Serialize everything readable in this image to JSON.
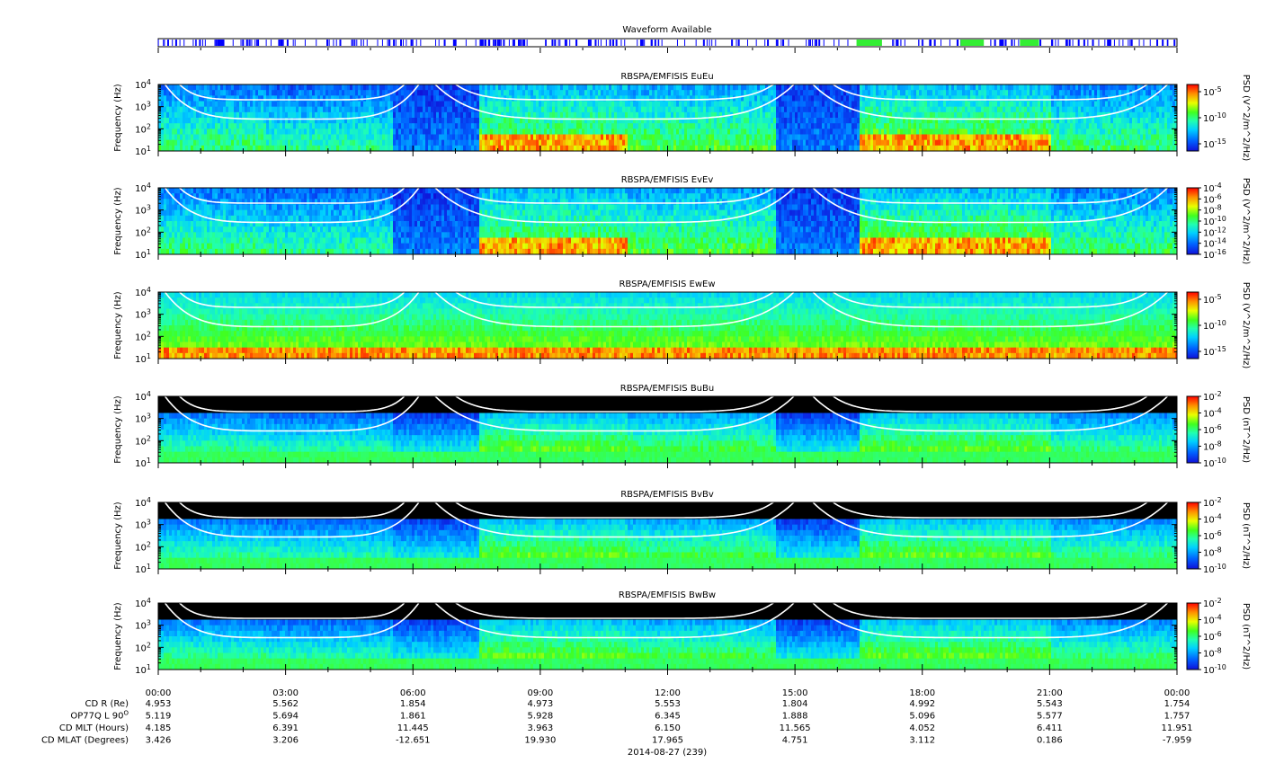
{
  "waveform": {
    "title": "Waveform Available",
    "spans": [
      {
        "t0": 0.0,
        "t1": 17.3,
        "color": "#0000ff"
      },
      {
        "t0": 17.3,
        "t1": 24.0,
        "color": "#0000ff"
      },
      {
        "t0": 16.45,
        "t1": 17.05,
        "color": "#33ee33"
      },
      {
        "t0": 18.9,
        "t1": 19.45,
        "color": "#33ee33"
      },
      {
        "t0": 20.3,
        "t1": 20.75,
        "color": "#33ee33"
      }
    ]
  },
  "chart_data": [
    {
      "type": "heatmap",
      "title": "RBSPA/EMFISIS  EuEu",
      "ylabel": "Frequency (Hz)",
      "ylim": [
        10,
        10000
      ],
      "yscale": "log",
      "yticks": [
        {
          "base": "10",
          "exp": "4"
        },
        {
          "base": "10",
          "exp": "3"
        },
        {
          "base": "10",
          "exp": "2"
        },
        {
          "base": "10",
          "exp": "1"
        }
      ],
      "colorbar": {
        "label": "PSD (V^2/m^2/Hz)",
        "ticks": [
          {
            "base": "10",
            "exp": "-5"
          },
          {
            "base": "10",
            "exp": "-10"
          },
          {
            "base": "10",
            "exp": "-15"
          }
        ]
      }
    },
    {
      "type": "heatmap",
      "title": "RBSPA/EMFISIS  EvEv",
      "ylabel": "Frequency (Hz)",
      "ylim": [
        10,
        10000
      ],
      "yscale": "log",
      "yticks": [
        {
          "base": "10",
          "exp": "4"
        },
        {
          "base": "10",
          "exp": "3"
        },
        {
          "base": "10",
          "exp": "2"
        },
        {
          "base": "10",
          "exp": "1"
        }
      ],
      "colorbar": {
        "label": "PSD (V^2/m^2/Hz)",
        "ticks": [
          {
            "base": "10",
            "exp": "-4"
          },
          {
            "base": "10",
            "exp": "-6"
          },
          {
            "base": "10",
            "exp": "-8"
          },
          {
            "base": "10",
            "exp": "-10"
          },
          {
            "base": "10",
            "exp": "-12"
          },
          {
            "base": "10",
            "exp": "-14"
          },
          {
            "base": "10",
            "exp": "-16"
          }
        ]
      }
    },
    {
      "type": "heatmap",
      "title": "RBSPA/EMFISIS  EwEw",
      "ylabel": "Frequency (Hz)",
      "ylim": [
        10,
        10000
      ],
      "yscale": "log",
      "yticks": [
        {
          "base": "10",
          "exp": "4"
        },
        {
          "base": "10",
          "exp": "3"
        },
        {
          "base": "10",
          "exp": "2"
        },
        {
          "base": "10",
          "exp": "1"
        }
      ],
      "colorbar": {
        "label": "PSD (V^2/m^2/Hz)",
        "ticks": [
          {
            "base": "10",
            "exp": "-5"
          },
          {
            "base": "10",
            "exp": "-10"
          },
          {
            "base": "10",
            "exp": "-15"
          }
        ]
      }
    },
    {
      "type": "heatmap",
      "title": "RBSPA/EMFISIS  BuBu",
      "ylabel": "Frequency (Hz)",
      "ylim": [
        10,
        10000
      ],
      "yscale": "log",
      "yticks": [
        {
          "base": "10",
          "exp": "4"
        },
        {
          "base": "10",
          "exp": "3"
        },
        {
          "base": "10",
          "exp": "2"
        },
        {
          "base": "10",
          "exp": "1"
        }
      ],
      "colorbar": {
        "label": "PSD (nT^2/Hz)",
        "ticks": [
          {
            "base": "10",
            "exp": "-2"
          },
          {
            "base": "10",
            "exp": "-4"
          },
          {
            "base": "10",
            "exp": "-6"
          },
          {
            "base": "10",
            "exp": "-8"
          },
          {
            "base": "10",
            "exp": "-10"
          }
        ]
      }
    },
    {
      "type": "heatmap",
      "title": "RBSPA/EMFISIS  BvBv",
      "ylabel": "Frequency (Hz)",
      "ylim": [
        10,
        10000
      ],
      "yscale": "log",
      "yticks": [
        {
          "base": "10",
          "exp": "4"
        },
        {
          "base": "10",
          "exp": "3"
        },
        {
          "base": "10",
          "exp": "2"
        },
        {
          "base": "10",
          "exp": "1"
        }
      ],
      "colorbar": {
        "label": "PSD (nT^2/Hz)",
        "ticks": [
          {
            "base": "10",
            "exp": "-2"
          },
          {
            "base": "10",
            "exp": "-4"
          },
          {
            "base": "10",
            "exp": "-6"
          },
          {
            "base": "10",
            "exp": "-8"
          },
          {
            "base": "10",
            "exp": "-10"
          }
        ]
      }
    },
    {
      "type": "heatmap",
      "title": "RBSPA/EMFISIS  BwBw",
      "ylabel": "Frequency (Hz)",
      "ylim": [
        10,
        10000
      ],
      "yscale": "log",
      "yticks": [
        {
          "base": "10",
          "exp": "4"
        },
        {
          "base": "10",
          "exp": "3"
        },
        {
          "base": "10",
          "exp": "2"
        },
        {
          "base": "10",
          "exp": "1"
        }
      ],
      "colorbar": {
        "label": "PSD (nT^2/Hz)",
        "ticks": [
          {
            "base": "10",
            "exp": "-2"
          },
          {
            "base": "10",
            "exp": "-4"
          },
          {
            "base": "10",
            "exp": "-6"
          },
          {
            "base": "10",
            "exp": "-8"
          },
          {
            "base": "10",
            "exp": "-10"
          }
        ]
      }
    }
  ],
  "xaxis": {
    "range_hours": [
      0,
      24
    ],
    "labels": [
      "00:00",
      "03:00",
      "06:00",
      "09:00",
      "12:00",
      "15:00",
      "18:00",
      "21:00",
      "00:00"
    ],
    "date": "2014-08-27 (239)"
  },
  "ephemeris": [
    {
      "label": "CD R (Re)",
      "values": [
        "4.953",
        "5.562",
        "1.854",
        "4.973",
        "5.553",
        "1.804",
        "4.992",
        "5.543",
        "1.754"
      ]
    },
    {
      "label": "OP77Q L 90",
      "label_sup": "O",
      "values": [
        "5.119",
        "5.694",
        "1.861",
        "5.928",
        "6.345",
        "1.888",
        "5.096",
        "5.577",
        "1.757"
      ]
    },
    {
      "label": "CD MLT (Hours)",
      "values": [
        "4.185",
        "6.391",
        "11.445",
        "3.963",
        "6.150",
        "11.565",
        "4.052",
        "6.411",
        "11.951"
      ]
    },
    {
      "label": "CD MLAT (Degrees)",
      "values": [
        "3.426",
        "3.206",
        "-12.651",
        "19.930",
        "17.965",
        "4.751",
        "3.112",
        "0.186",
        "-7.959"
      ]
    }
  ],
  "colors": {
    "ring_curves": "#ffffff",
    "background": "#ffffff",
    "magnetic_empty": "#000000",
    "electric_empty": "#0018c8"
  }
}
